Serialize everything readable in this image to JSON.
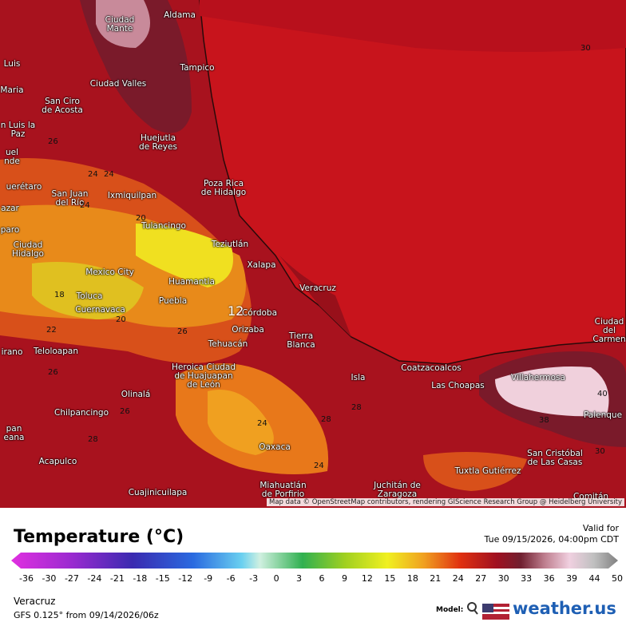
{
  "map": {
    "cities": [
      "Ciudad Mante",
      "Aldama",
      "Tampico",
      "Ciudad Valles",
      "San Ciro de Acosta",
      "Luis",
      "Maria",
      "Huejutla de Reyes",
      "n Luis la Paz",
      "uel nde",
      "uerétaro",
      "San Juan del Río",
      "Ixmiquilpan",
      "Poza Rica de Hidalgo",
      "Tulancingo",
      "Teziutlán",
      "Ciudad Hidalgo",
      "Xalapa",
      "Mexico City",
      "Huamantla",
      "Veracruz",
      "Toluca",
      "Puebla",
      "Cuernavaca",
      "Córdoba",
      "Orizaba",
      "Tierra Blanca",
      "Tehuacán",
      "Teloloapan",
      "Heroica Ciudad de Huajuapan de León",
      "Coatzacoalcos",
      "Isla",
      "Villahermosa",
      "Las Choapas",
      "Olinalá",
      "Ciudad del Carmen",
      "Palenque",
      "Chilpancingo",
      "Oaxaca",
      "San Cristóbal de Las Casas",
      "Acapulco",
      "Tuxtla Gutiérrez",
      "Juchitán de Zaragoza",
      "Miahuatlán de Porfirio",
      "Cuajinicuilapa",
      "azar",
      "paro",
      "irano",
      "pan eana",
      "Comitán"
    ],
    "contours": [
      "30",
      "26",
      "24",
      "24",
      "20",
      "18",
      "22",
      "12",
      "20",
      "26",
      "26",
      "26",
      "24",
      "24",
      "28",
      "28",
      "40",
      "38",
      "30",
      "24",
      "28"
    ],
    "attribution": "Map data © OpenStreetMap contributors, rendering GIScience Research Group @ Heidelberg University"
  },
  "legend": {
    "title": "Temperature (°C)",
    "valid_label": "Valid for",
    "valid_time": "Tue 09/15/2026, 04:00pm CDT",
    "ticks": [
      -36,
      -30,
      -27,
      -24,
      -21,
      -18,
      -15,
      -12,
      -9,
      -6,
      -3,
      0,
      3,
      6,
      9,
      12,
      15,
      18,
      21,
      24,
      27,
      30,
      33,
      36,
      39,
      44,
      50
    ]
  },
  "footer": {
    "location": "Veracruz",
    "model_run": "GFS 0.125° from  09/14/2026/06z",
    "model_label": "Model:",
    "brand": "weather.us"
  }
}
